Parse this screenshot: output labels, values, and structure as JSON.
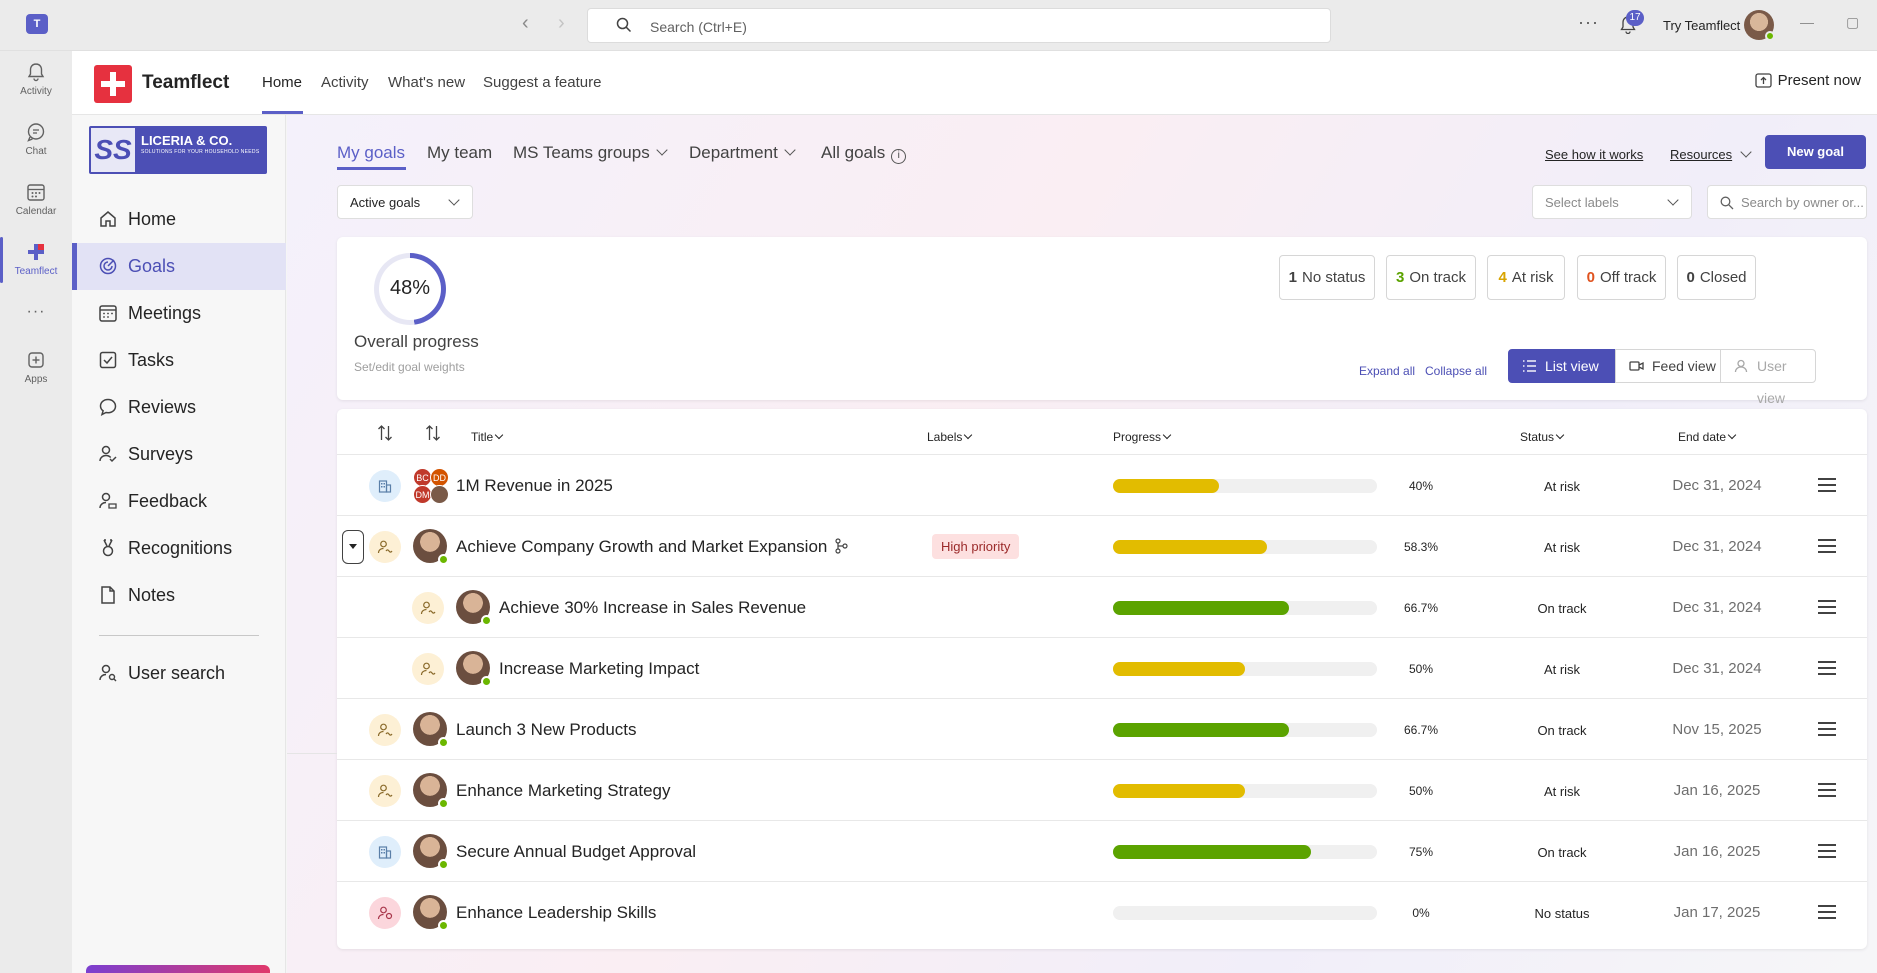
{
  "topbar": {
    "search_placeholder": "Search (Ctrl+E)",
    "notification_count": "17",
    "user_label": "Try Teamflect",
    "more": "···"
  },
  "rail": [
    {
      "label": "Activity",
      "icon": "bell-icon"
    },
    {
      "label": "Chat",
      "icon": "chat-icon"
    },
    {
      "label": "Calendar",
      "icon": "calendar-icon"
    },
    {
      "label": "Teamflect",
      "icon": "teamflect-icon",
      "active": true
    },
    {
      "label": "Apps",
      "icon": "apps-icon"
    }
  ],
  "app_header": {
    "name": "Teamflect",
    "tabs": [
      "Home",
      "Activity",
      "What's new",
      "Suggest a feature"
    ],
    "present": "Present now"
  },
  "company": {
    "name": "LICERIA & CO.",
    "tagline": "SOLUTIONS FOR YOUR HOUSEHOLD NEEDS"
  },
  "sidebar": {
    "items": [
      "Home",
      "Goals",
      "Meetings",
      "Tasks",
      "Reviews",
      "Surveys",
      "Feedback",
      "Recognitions",
      "Notes"
    ],
    "search": "User search"
  },
  "goal_tabs": {
    "my_goals": "My goals",
    "my_team": "My team",
    "ms_teams_groups": "MS Teams groups",
    "department": "Department",
    "all_goals": "All goals"
  },
  "links": {
    "see_how": "See how it works",
    "resources": "Resources",
    "new_goal": "New goal"
  },
  "filters": {
    "goal_filter": "Active goals",
    "labels_placeholder": "Select labels",
    "owner_search_placeholder": "Search by owner or..."
  },
  "summary": {
    "progress_value": 48,
    "progress_text": "48%",
    "label": "Overall progress",
    "sub": "Set/edit goal weights",
    "stats": [
      {
        "count": "1",
        "label": "No status",
        "color": "#424242"
      },
      {
        "count": "3",
        "label": "On track",
        "color": "#5ba300"
      },
      {
        "count": "4",
        "label": "At risk",
        "color": "#d9a400"
      },
      {
        "count": "0",
        "label": "Off track",
        "color": "#e0531f"
      },
      {
        "count": "0",
        "label": "Closed",
        "color": "#242424"
      }
    ],
    "expand_all": "Expand all",
    "collapse_all": "Collapse all",
    "list_view": "List view",
    "feed_view": "Feed view",
    "user_view": "User view"
  },
  "table": {
    "headers": {
      "title": "Title",
      "labels": "Labels",
      "progress": "Progress",
      "status": "Status",
      "end_date": "End date"
    },
    "rows": [
      {
        "type": "company",
        "owner": "multi",
        "title": "1M Revenue in 2025",
        "label": "",
        "progress": 40,
        "pct": "40%",
        "status": "At risk",
        "end": "Dec 31, 2024",
        "indent": 0
      },
      {
        "type": "person",
        "owner": "single",
        "title": "Achieve Company Growth and Market Expansion",
        "label": "High priority",
        "progress": 58.3,
        "pct": "58.3%",
        "status": "At risk",
        "end": "Dec 31, 2024",
        "indent": 0,
        "expanded": true,
        "aligned": true
      },
      {
        "type": "person",
        "owner": "single",
        "title": "Achieve 30% Increase in Sales Revenue",
        "label": "",
        "progress": 66.7,
        "pct": "66.7%",
        "status": "On track",
        "end": "Dec 31, 2024",
        "indent": 1
      },
      {
        "type": "person",
        "owner": "single",
        "title": "Increase Marketing Impact",
        "label": "",
        "progress": 50,
        "pct": "50%",
        "status": "At risk",
        "end": "Dec 31, 2024",
        "indent": 1
      },
      {
        "type": "person",
        "owner": "single",
        "title": "Launch 3 New Products",
        "label": "",
        "progress": 66.7,
        "pct": "66.7%",
        "status": "On track",
        "end": "Nov 15, 2025",
        "indent": 0
      },
      {
        "type": "person",
        "owner": "single",
        "title": "Enhance Marketing Strategy",
        "label": "",
        "progress": 50,
        "pct": "50%",
        "status": "At risk",
        "end": "Jan 16, 2025",
        "indent": 0
      },
      {
        "type": "company",
        "owner": "single",
        "title": "Secure Annual Budget Approval",
        "label": "",
        "progress": 75,
        "pct": "75%",
        "status": "On track",
        "end": "Jan 16, 2025",
        "indent": 0
      },
      {
        "type": "team",
        "owner": "single",
        "title": "Enhance Leadership Skills",
        "label": "",
        "progress": 0,
        "pct": "0%",
        "status": "No status",
        "end": "Jan 17, 2025",
        "indent": 0
      }
    ],
    "multi_owner_initials": [
      "BC",
      "DD",
      "DM",
      ""
    ]
  }
}
